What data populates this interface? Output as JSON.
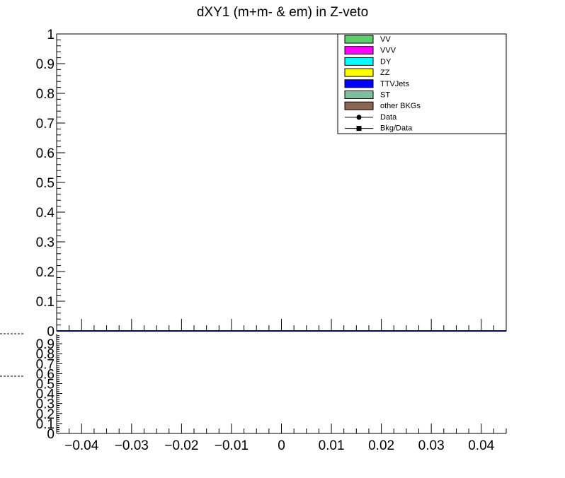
{
  "chart_data": [
    {
      "panel": "main",
      "type": "bar",
      "title": "dXY1 (m+m- & em) in Z-veto",
      "xlabel": "",
      "ylabel": "",
      "xlim": [
        -0.045,
        0.045
      ],
      "ylim": [
        0,
        1
      ],
      "y_ticks": [
        "0",
        "0.1",
        "0.2",
        "0.3",
        "0.4",
        "0.5",
        "0.6",
        "0.7",
        "0.8",
        "0.9",
        "1"
      ],
      "grid": false,
      "legend_position": "top-right",
      "legend": [
        {
          "label": "VV",
          "marker": "box",
          "color": "#5ccf6b"
        },
        {
          "label": "VVV",
          "marker": "box",
          "color": "#ff00ff"
        },
        {
          "label": "DY",
          "marker": "box",
          "color": "#00ffff"
        },
        {
          "label": "ZZ",
          "marker": "box",
          "color": "#ffff00"
        },
        {
          "label": "TTVJets",
          "marker": "box",
          "color": "#0000ff"
        },
        {
          "label": "ST",
          "marker": "box",
          "color": "#7fbf9f"
        },
        {
          "label": "other BKGs",
          "marker": "box",
          "color": "#8b6552"
        },
        {
          "label": "Data",
          "marker": "circle",
          "color": "#000000"
        },
        {
          "label": "Bkg/Data",
          "marker": "square",
          "color": "#000000"
        }
      ],
      "series": []
    },
    {
      "panel": "ratio",
      "type": "line",
      "xlim": [
        -0.045,
        0.045
      ],
      "ylim": [
        0,
        1
      ],
      "x_ticks": [
        "−0.04",
        "−0.03",
        "−0.02",
        "−0.01",
        "0",
        "0.01",
        "0.02",
        "0.03",
        "0.04"
      ],
      "x_tick_values": [
        -0.04,
        -0.03,
        -0.02,
        -0.01,
        0,
        0.01,
        0.02,
        0.03,
        0.04
      ],
      "y_ticks": [
        "0",
        "0.1",
        "0.2",
        "0.3",
        "0.4",
        "0.5",
        "0.6",
        "0.7",
        "0.8",
        "0.9"
      ],
      "grid": false,
      "series": []
    }
  ],
  "colors": {
    "axis": "#000000",
    "baseline": "#000080",
    "background": "#ffffff"
  }
}
